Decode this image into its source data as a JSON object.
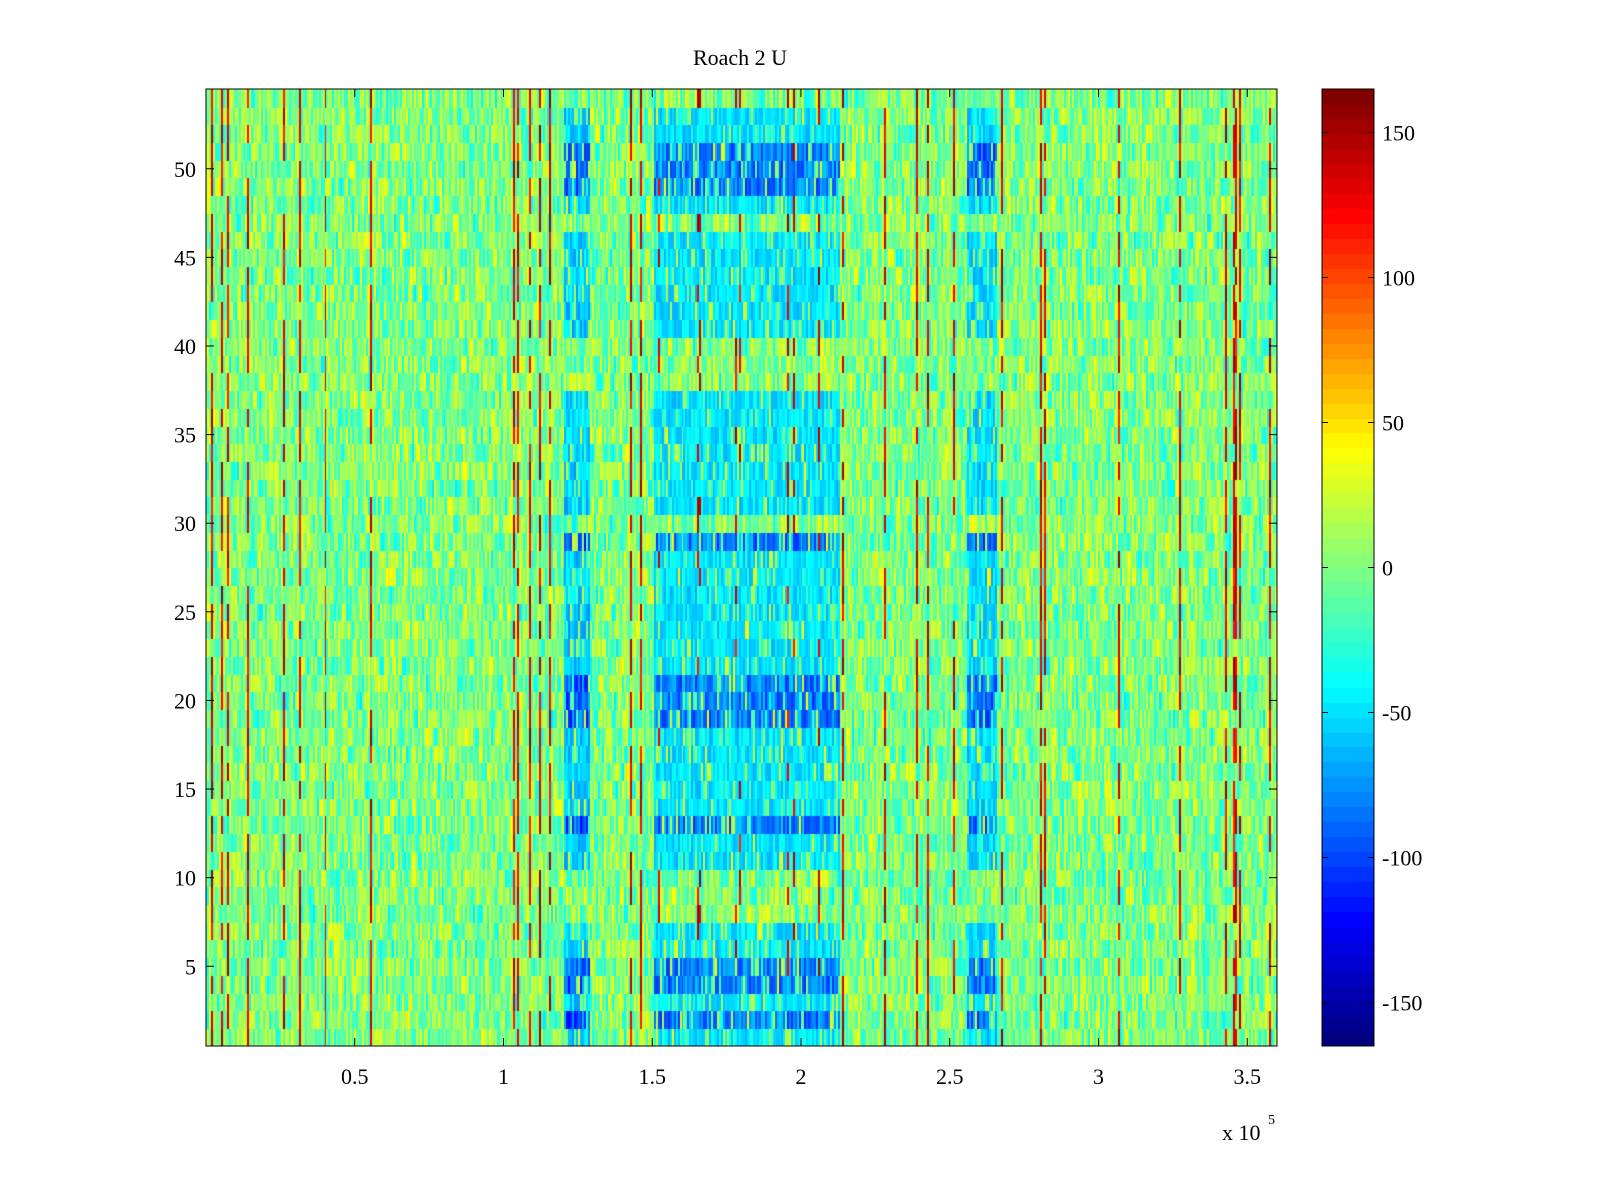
{
  "chart_data": {
    "type": "heatmap",
    "title": "Roach 2 U",
    "xlabel": "",
    "ylabel": "",
    "x_range": [
      0,
      360000
    ],
    "y_range": [
      0.5,
      54.5
    ],
    "x_ticks": [
      50000,
      100000,
      150000,
      200000,
      250000,
      300000,
      350000
    ],
    "x_tick_labels": [
      "0.5",
      "1",
      "1.5",
      "2",
      "2.5",
      "3",
      "3.5"
    ],
    "x_exponent_label": "x 10",
    "x_exponent_power": "5",
    "y_ticks": [
      5,
      10,
      15,
      20,
      25,
      30,
      35,
      40,
      45,
      50
    ],
    "y_tick_labels": [
      "5",
      "10",
      "15",
      "20",
      "25",
      "30",
      "35",
      "40",
      "45",
      "50"
    ],
    "rows": 54,
    "colormap": "jet",
    "color_range": [
      -165,
      165
    ],
    "colorbar": {
      "ticks": [
        -150,
        -100,
        -50,
        0,
        50,
        100,
        150
      ],
      "tick_labels": [
        "-150",
        "-100",
        "-50",
        "0",
        "50",
        "100",
        "150"
      ],
      "placement": "right"
    },
    "background_level": 0,
    "low_value_regions": [
      {
        "x_start": 121000,
        "x_end": 129000,
        "level": -80
      },
      {
        "x_start": 151000,
        "x_end": 213000,
        "level": -70
      },
      {
        "x_start": 256000,
        "x_end": 266000,
        "level": -75
      }
    ],
    "low_value_rows": [
      1,
      2,
      3,
      4,
      5,
      6,
      7,
      11,
      12,
      13,
      14,
      15,
      16,
      17,
      18,
      19,
      20,
      21,
      22,
      23,
      24,
      25,
      26,
      27,
      28,
      29,
      31,
      32,
      33,
      34,
      35,
      36,
      37,
      41,
      42,
      43,
      44,
      45,
      46,
      48,
      49,
      50,
      51,
      52,
      53
    ],
    "strong_low_rows": [
      2,
      4,
      5,
      13,
      19,
      20,
      21,
      29,
      49,
      50,
      51
    ]
  }
}
